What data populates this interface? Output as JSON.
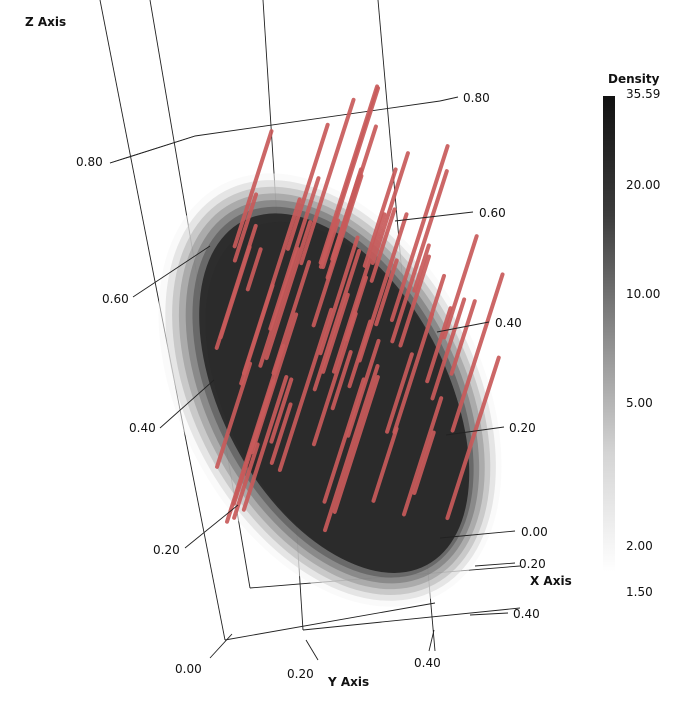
{
  "chart_data": {
    "type": "volume",
    "axes": {
      "x": {
        "title": "X Axis",
        "ticks": [
          "0.00",
          "0.20",
          "0.40"
        ]
      },
      "y": {
        "title": "Y Axis",
        "ticks": [
          "0.00",
          "0.20",
          "0.40"
        ]
      },
      "z": {
        "title": "Z Axis",
        "ticks": [
          "0.20",
          "0.40",
          "0.60",
          "0.80"
        ]
      },
      "x_far": {
        "ticks": [
          "0.20",
          "0.40",
          "0.60",
          "0.80"
        ]
      }
    },
    "colorbar": {
      "title": "Density",
      "max_label": "35.59",
      "min_label": "1.50",
      "ticks": [
        "20.00",
        "10.00",
        "5.00",
        "2.00"
      ],
      "colors": {
        "high": "#111111",
        "low": "#ffffff"
      }
    },
    "isosurfaces": {
      "color": "#2b2b2b",
      "levels": 7
    },
    "streamlines": {
      "color": "#c85a5a",
      "count": 62
    }
  }
}
